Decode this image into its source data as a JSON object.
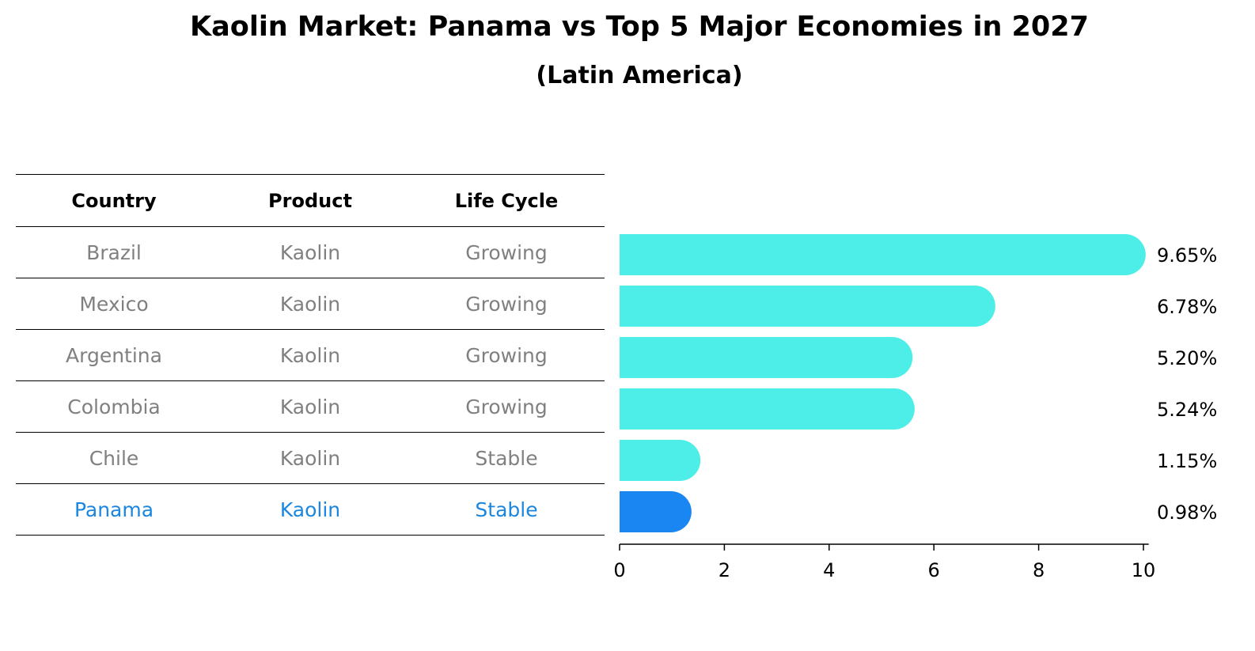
{
  "title": "Kaolin Market: Panama vs Top 5 Major Economies in 2027",
  "subtitle": "(Latin America)",
  "table": {
    "headers": [
      "Country",
      "Product",
      "Life Cycle"
    ],
    "rows": [
      [
        "Brazil",
        "Kaolin",
        "Growing"
      ],
      [
        "Mexico",
        "Kaolin",
        "Growing"
      ],
      [
        "Argentina",
        "Kaolin",
        "Growing"
      ],
      [
        "Colombia",
        "Kaolin",
        "Growing"
      ],
      [
        "Chile",
        "Kaolin",
        "Stable"
      ],
      [
        "Panama",
        "Kaolin",
        "Stable"
      ]
    ]
  },
  "chart_data": {
    "type": "bar",
    "orientation": "horizontal",
    "categories": [
      "Brazil",
      "Mexico",
      "Argentina",
      "Colombia",
      "Chile",
      "Panama"
    ],
    "values": [
      9.65,
      6.78,
      5.2,
      5.24,
      1.15,
      0.98
    ],
    "value_labels": [
      "9.65%",
      "6.78%",
      "5.20%",
      "5.24%",
      "1.15%",
      "0.98%"
    ],
    "xlim": [
      0,
      10
    ],
    "xticks": [
      "0",
      "2",
      "4",
      "6",
      "8",
      "10"
    ],
    "highlight_category": "Panama",
    "colors": {
      "bar": "#4deee8",
      "highlight": "#1a86f2",
      "highlight_text": "#1a86e0",
      "muted_text": "#808080"
    },
    "grid": false
  }
}
